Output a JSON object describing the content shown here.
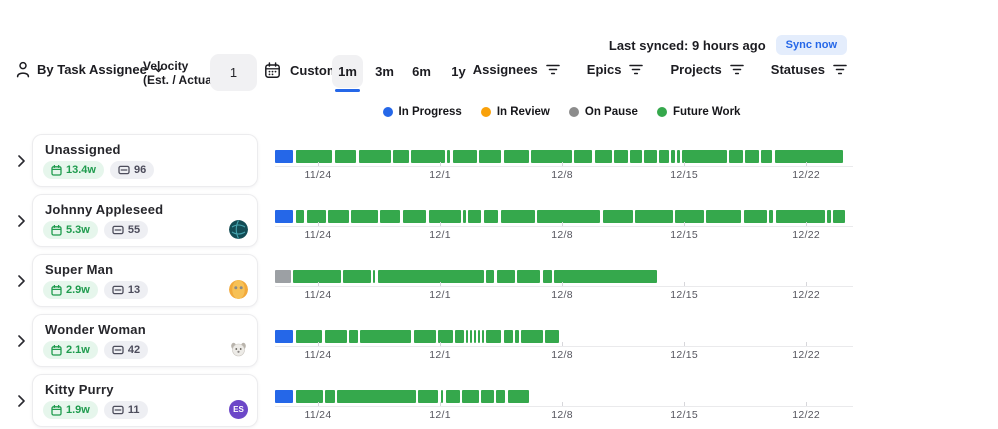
{
  "sync": {
    "last_synced": "Last synced: 9 hours ago",
    "button_label": "Sync now"
  },
  "toolbar": {
    "group_by_label": "By Task Assignee",
    "velocity_label_line1": "Velocity",
    "velocity_label_line2": "(Est. / Actual):",
    "velocity_value": "1",
    "custom_label": "Custom",
    "ranges": [
      {
        "label": "1m",
        "selected": true
      },
      {
        "label": "3m",
        "selected": false
      },
      {
        "label": "6m",
        "selected": false
      },
      {
        "label": "1y",
        "selected": false
      }
    ],
    "filters": [
      {
        "label": "Assignees"
      },
      {
        "label": "Epics"
      },
      {
        "label": "Projects"
      },
      {
        "label": "Statuses"
      }
    ]
  },
  "legend": [
    {
      "label": "In Progress",
      "color": "#2567e8"
    },
    {
      "label": "In Review",
      "color": "#f9a10a"
    },
    {
      "label": "On Pause",
      "color": "#8c8c8c"
    },
    {
      "label": "Future Work",
      "color": "#35a84c"
    }
  ],
  "colors": {
    "blue": "#2567e8",
    "green": "#35a84c",
    "gray": "#9ca0a4",
    "orange": "#f9a10a"
  },
  "axis": {
    "tick_labels": [
      "11/24",
      "12/1",
      "12/8",
      "12/15",
      "12/22"
    ],
    "tick_positions_pct": [
      7.5,
      28.8,
      50.1,
      71.4,
      92.7
    ]
  },
  "rows": [
    {
      "name": "Unassigned",
      "duration_weeks": "13.4w",
      "task_count": "96",
      "avatar": null,
      "segments": [
        {
          "c": "blue",
          "s": 0,
          "w": 3.2
        },
        {
          "c": "green",
          "s": 3.7,
          "w": 6.3
        },
        {
          "c": "green",
          "s": 10.4,
          "w": 3.8
        },
        {
          "c": "green",
          "s": 14.6,
          "w": 5.6
        },
        {
          "c": "green",
          "s": 20.6,
          "w": 2.7
        },
        {
          "c": "green",
          "s": 23.7,
          "w": 5.9
        },
        {
          "c": "green",
          "s": 30.0,
          "w": 0.6
        },
        {
          "c": "green",
          "s": 31.0,
          "w": 4.2
        },
        {
          "c": "green",
          "s": 35.6,
          "w": 3.9
        },
        {
          "c": "green",
          "s": 39.9,
          "w": 4.4
        },
        {
          "c": "green",
          "s": 44.7,
          "w": 7.1
        },
        {
          "c": "green",
          "s": 52.2,
          "w": 3.2
        },
        {
          "c": "green",
          "s": 55.8,
          "w": 3.0
        },
        {
          "c": "green",
          "s": 59.2,
          "w": 2.4
        },
        {
          "c": "green",
          "s": 62.0,
          "w": 2.0
        },
        {
          "c": "green",
          "s": 64.4,
          "w": 2.3
        },
        {
          "c": "green",
          "s": 67.1,
          "w": 1.6
        },
        {
          "c": "green",
          "s": 69.1,
          "w": 0.7
        },
        {
          "c": "green",
          "s": 70.2,
          "w": 0.5
        },
        {
          "c": "green",
          "s": 71.1,
          "w": 7.8
        },
        {
          "c": "green",
          "s": 79.3,
          "w": 2.4
        },
        {
          "c": "green",
          "s": 82.1,
          "w": 2.4
        },
        {
          "c": "green",
          "s": 84.9,
          "w": 1.9
        },
        {
          "c": "green",
          "s": 87.2,
          "w": 11.9
        }
      ]
    },
    {
      "name": "Johnny Appleseed",
      "duration_weeks": "5.3w",
      "task_count": "55",
      "avatar": {
        "type": "globe"
      },
      "segments": [
        {
          "c": "blue",
          "s": 0,
          "w": 3.2
        },
        {
          "c": "green",
          "s": 3.6,
          "w": 1.5
        },
        {
          "c": "green",
          "s": 5.5,
          "w": 3.4
        },
        {
          "c": "green",
          "s": 9.3,
          "w": 3.6
        },
        {
          "c": "green",
          "s": 13.3,
          "w": 4.6
        },
        {
          "c": "green",
          "s": 18.3,
          "w": 3.6
        },
        {
          "c": "green",
          "s": 22.3,
          "w": 4.1
        },
        {
          "c": "green",
          "s": 26.8,
          "w": 5.6
        },
        {
          "c": "green",
          "s": 32.8,
          "w": 0.5
        },
        {
          "c": "green",
          "s": 33.7,
          "w": 2.3
        },
        {
          "c": "green",
          "s": 36.4,
          "w": 2.6
        },
        {
          "c": "green",
          "s": 39.4,
          "w": 6.0
        },
        {
          "c": "green",
          "s": 45.8,
          "w": 11.0
        },
        {
          "c": "green",
          "s": 57.2,
          "w": 5.2
        },
        {
          "c": "green",
          "s": 62.8,
          "w": 6.6
        },
        {
          "c": "green",
          "s": 69.8,
          "w": 5.1
        },
        {
          "c": "green",
          "s": 75.3,
          "w": 6.1
        },
        {
          "c": "green",
          "s": 81.8,
          "w": 4.1
        },
        {
          "c": "green",
          "s": 86.3,
          "w": 0.7
        },
        {
          "c": "green",
          "s": 87.4,
          "w": 8.5
        },
        {
          "c": "green",
          "s": 96.3,
          "w": 0.7
        },
        {
          "c": "green",
          "s": 97.4,
          "w": 2.0
        }
      ]
    },
    {
      "name": "Super Man",
      "duration_weeks": "2.9w",
      "task_count": "13",
      "avatar": {
        "type": "face"
      },
      "segments": [
        {
          "c": "gray",
          "s": 0,
          "w": 2.8
        },
        {
          "c": "green",
          "s": 3.2,
          "w": 8.3
        },
        {
          "c": "green",
          "s": 11.9,
          "w": 4.8
        },
        {
          "c": "green",
          "s": 17.1,
          "w": 0.4
        },
        {
          "c": "green",
          "s": 17.9,
          "w": 18.5
        },
        {
          "c": "green",
          "s": 36.8,
          "w": 1.5
        },
        {
          "c": "green",
          "s": 38.7,
          "w": 3.2
        },
        {
          "c": "green",
          "s": 42.3,
          "w": 4.0
        },
        {
          "c": "green",
          "s": 46.7,
          "w": 1.6
        },
        {
          "c": "green",
          "s": 48.7,
          "w": 18.0
        }
      ]
    },
    {
      "name": "Wonder Woman",
      "duration_weeks": "2.1w",
      "task_count": "42",
      "avatar": {
        "type": "dog"
      },
      "segments": [
        {
          "c": "blue",
          "s": 0,
          "w": 3.2
        },
        {
          "c": "green",
          "s": 3.6,
          "w": 4.6
        },
        {
          "c": "green",
          "s": 8.7,
          "w": 3.8
        },
        {
          "c": "green",
          "s": 12.9,
          "w": 1.6
        },
        {
          "c": "green",
          "s": 14.9,
          "w": 8.9
        },
        {
          "c": "green",
          "s": 24.2,
          "w": 3.9
        },
        {
          "c": "green",
          "s": 28.5,
          "w": 2.6
        },
        {
          "c": "green",
          "s": 31.5,
          "w": 1.4
        },
        {
          "c": "green",
          "s": 33.3,
          "w": 0.3
        },
        {
          "c": "green",
          "s": 34.0,
          "w": 0.3
        },
        {
          "c": "green",
          "s": 34.7,
          "w": 0.3
        },
        {
          "c": "green",
          "s": 35.4,
          "w": 0.3
        },
        {
          "c": "green",
          "s": 36.1,
          "w": 0.4
        },
        {
          "c": "green",
          "s": 36.9,
          "w": 2.6
        },
        {
          "c": "green",
          "s": 39.9,
          "w": 1.6
        },
        {
          "c": "green",
          "s": 41.9,
          "w": 0.7
        },
        {
          "c": "green",
          "s": 43.0,
          "w": 3.8
        },
        {
          "c": "green",
          "s": 47.2,
          "w": 2.3
        }
      ]
    },
    {
      "name": "Kitty Purry",
      "duration_weeks": "1.9w",
      "task_count": "11",
      "avatar": {
        "type": "initials",
        "initials": "ES",
        "bg": "#6c47c8"
      },
      "segments": [
        {
          "c": "blue",
          "s": 0,
          "w": 3.2
        },
        {
          "c": "green",
          "s": 3.6,
          "w": 4.7
        },
        {
          "c": "green",
          "s": 8.7,
          "w": 1.7
        },
        {
          "c": "green",
          "s": 10.8,
          "w": 13.8
        },
        {
          "c": "green",
          "s": 25.0,
          "w": 3.5
        },
        {
          "c": "green",
          "s": 28.9,
          "w": 0.5
        },
        {
          "c": "green",
          "s": 29.8,
          "w": 2.4
        },
        {
          "c": "green",
          "s": 32.6,
          "w": 3.0
        },
        {
          "c": "green",
          "s": 36.0,
          "w": 2.2
        },
        {
          "c": "green",
          "s": 38.6,
          "w": 1.6
        },
        {
          "c": "green",
          "s": 40.6,
          "w": 3.8
        }
      ]
    }
  ]
}
